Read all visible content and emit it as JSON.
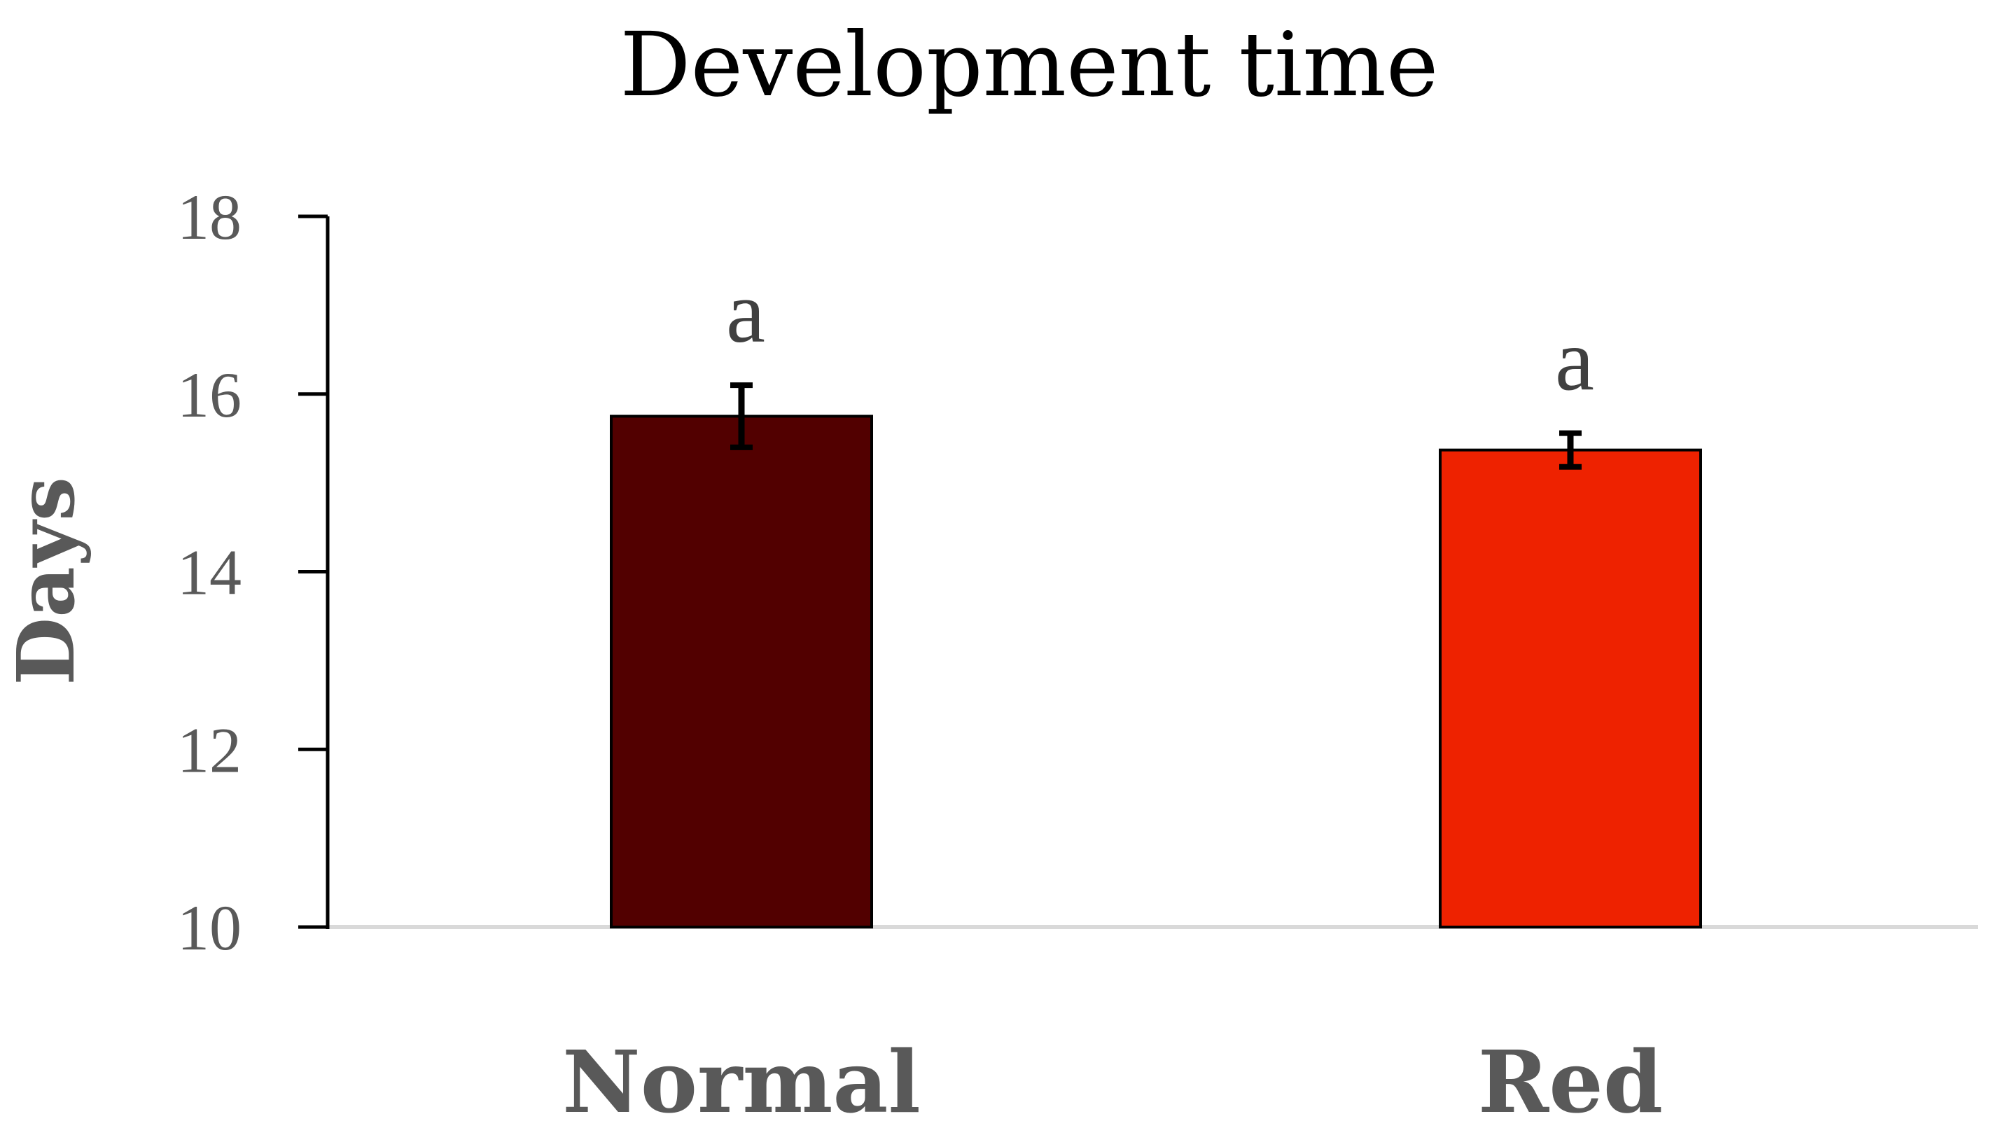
{
  "chart_data": {
    "type": "bar",
    "title": "Development time",
    "xlabel": "",
    "ylabel": "Days",
    "ylim": [
      10,
      18
    ],
    "yticks": [
      "10",
      "12",
      "14",
      "16",
      "18"
    ],
    "categories": [
      "Normal",
      "Red"
    ],
    "values": [
      15.75,
      15.37
    ],
    "errors": [
      0.35,
      0.19
    ],
    "significance_labels": [
      "a",
      "a"
    ],
    "bar_colors": [
      "#520000",
      "#ee2200"
    ],
    "grid": false,
    "legend": "none"
  }
}
